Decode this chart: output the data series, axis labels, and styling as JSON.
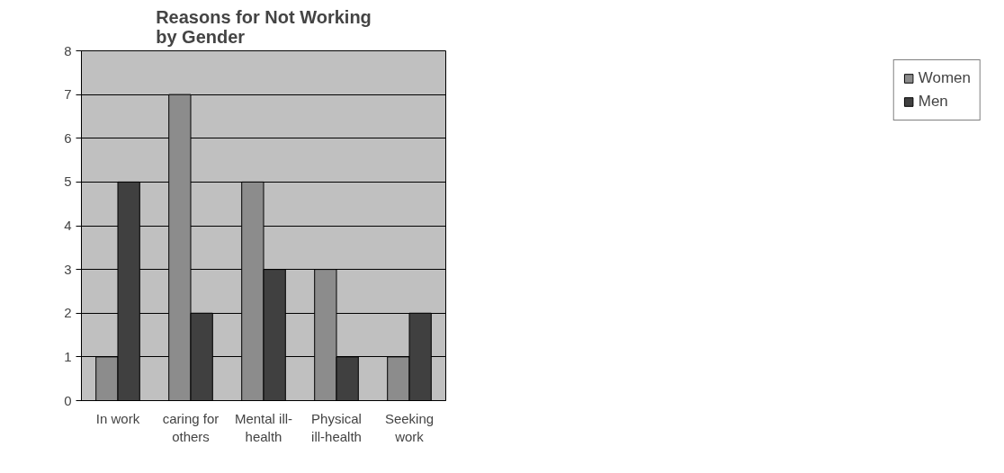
{
  "chart_data": {
    "type": "bar",
    "title": "Reasons for Not Working\nby Gender",
    "categories": [
      "In work",
      "caring for others",
      "Mental ill-health",
      "Physical ill-health",
      "Seeking work"
    ],
    "series": [
      {
        "name": "Women",
        "color": "#8c8c8c",
        "values": [
          1,
          7,
          5,
          3,
          1
        ]
      },
      {
        "name": "Men",
        "color": "#404040",
        "values": [
          5,
          2,
          3,
          1,
          2
        ]
      }
    ],
    "ylim": [
      0,
      8
    ],
    "yticks": [
      0,
      1,
      2,
      3,
      4,
      5,
      6,
      7,
      8
    ],
    "grid": "y",
    "legend": "right"
  }
}
